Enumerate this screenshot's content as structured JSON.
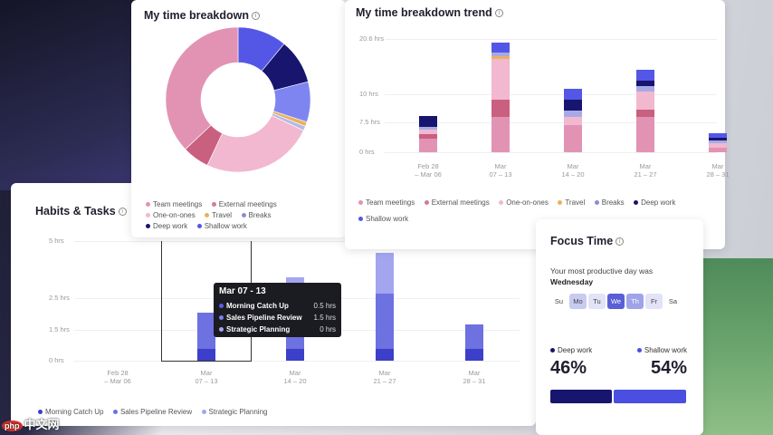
{
  "donut": {
    "title": "My time breakdown",
    "legend": [
      {
        "label": "Team meetings",
        "color": "#e293b4"
      },
      {
        "label": "External meetings",
        "color": "#d47a9c"
      },
      {
        "label": "One-on-ones",
        "color": "#f2b8cf"
      },
      {
        "label": "Travel",
        "color": "#e9b25d"
      },
      {
        "label": "Breaks",
        "color": "#b8b9e6"
      },
      {
        "label": "Deep work",
        "color": "#17156e"
      },
      {
        "label": "Shallow work",
        "color": "#5457e6"
      }
    ],
    "slices": [
      {
        "name": "Shallow work",
        "value": 11,
        "color": "#5457e6"
      },
      {
        "name": "Deep work",
        "value": 10,
        "color": "#17156e"
      },
      {
        "name": "Breaks",
        "value": 9,
        "color": "#7f85f0"
      },
      {
        "name": "Travel",
        "value": 1,
        "color": "#e9b25d"
      },
      {
        "name": "Breaks-2",
        "value": 1,
        "color": "#b8b9e6"
      },
      {
        "name": "One-on-ones",
        "value": 25,
        "color": "#f2b8cf"
      },
      {
        "name": "External meetings",
        "value": 6,
        "color": "#c9607f"
      },
      {
        "name": "Team meetings",
        "value": 37,
        "color": "#e293b4"
      }
    ]
  },
  "trend": {
    "title": "My time breakdown trend",
    "y_ticks": [
      "20.6 hrs",
      "10 hrs",
      "7.5 hrs",
      "0 hrs"
    ],
    "x_labels": [
      {
        "line1": "Feb 28",
        "line2": "– Mar 06"
      },
      {
        "line1": "Mar",
        "line2": "07 – 13"
      },
      {
        "line1": "Mar",
        "line2": "14 – 20"
      },
      {
        "line1": "Mar",
        "line2": "21 – 27"
      },
      {
        "line1": "Mar",
        "line2": "28 – 31"
      }
    ],
    "legend": [
      {
        "label": "Team meetings",
        "color": "#e293b4"
      },
      {
        "label": "External meetings",
        "color": "#d47a9c"
      },
      {
        "label": "One-on-ones",
        "color": "#f2b8cf"
      },
      {
        "label": "Travel",
        "color": "#e9b25d"
      },
      {
        "label": "Breaks",
        "color": "#8b8dd6"
      },
      {
        "label": "Deep work",
        "color": "#17156e"
      },
      {
        "label": "Shallow work",
        "color": "#5457e6"
      }
    ]
  },
  "habits": {
    "title": "Habits & Tasks",
    "y_ticks": [
      "5 hrs",
      "2.5 hrs",
      "1.5 hrs",
      "0 hrs"
    ],
    "x_labels": [
      {
        "line1": "Feb 28",
        "line2": "– Mar 06"
      },
      {
        "line1": "Mar",
        "line2": "07 – 13"
      },
      {
        "line1": "Mar",
        "line2": "14 – 20"
      },
      {
        "line1": "Mar",
        "line2": "21 – 27"
      },
      {
        "line1": "Mar",
        "line2": "28 – 31"
      }
    ],
    "legend": [
      {
        "label": "Morning Catch Up",
        "color": "#3c3fc9"
      },
      {
        "label": "Sales Pipeline Review",
        "color": "#6e71e0"
      },
      {
        "label": "Strategic Planning",
        "color": "#a3a6ef"
      }
    ],
    "tooltip": {
      "title": "Mar 07 - 13",
      "rows": [
        {
          "name": "Morning Catch Up",
          "value": "0.5 hrs",
          "color": "#3c3fc9"
        },
        {
          "name": "Sales Pipeline Review",
          "value": "1.5 hrs",
          "color": "#6e71e0"
        },
        {
          "name": "Strategic Planning",
          "value": "0 hrs",
          "color": "#a3a6ef"
        }
      ]
    }
  },
  "focus": {
    "title": "Focus Time",
    "subtitle": "Your most productive day was",
    "day": "Wednesday",
    "weekdays": [
      "Su",
      "Mo",
      "Tu",
      "We",
      "Th",
      "Fr",
      "Sa"
    ],
    "deep_label": "Deep work",
    "shallow_label": "Shallow work",
    "deep_pct": "46%",
    "shallow_pct": "54%",
    "deep_color": "#17156e",
    "shallow_color": "#4a4fe0"
  },
  "watermark": {
    "badge": "php",
    "text": "中文网"
  },
  "chart_data": [
    {
      "type": "pie",
      "title": "My time breakdown",
      "categories": [
        "Shallow work",
        "Deep work",
        "Breaks",
        "Travel",
        "One-on-ones",
        "External meetings",
        "Team meetings"
      ],
      "values": [
        11,
        10,
        10,
        1,
        25,
        6,
        37
      ]
    },
    {
      "type": "bar",
      "title": "My time breakdown trend",
      "categories": [
        "Feb 28 – Mar 06",
        "Mar 07 – 13",
        "Mar 14 – 20",
        "Mar 21 – 27",
        "Mar 28 – 31"
      ],
      "ylim": [
        0,
        20.6
      ],
      "series": [
        {
          "name": "Team meetings",
          "values": [
            2.5,
            6.5,
            5.0,
            6.5,
            0.8
          ]
        },
        {
          "name": "External meetings",
          "values": [
            0.8,
            3.0,
            0,
            1.2,
            0
          ]
        },
        {
          "name": "One-on-ones",
          "values": [
            0.8,
            7.5,
            1.5,
            3.3,
            0.8
          ]
        },
        {
          "name": "Travel",
          "values": [
            0,
            0.5,
            0,
            0,
            0
          ]
        },
        {
          "name": "Breaks",
          "values": [
            0.5,
            0.7,
            1.0,
            1.0,
            0.5
          ]
        },
        {
          "name": "Deep work",
          "values": [
            2.0,
            0,
            2.0,
            1.0,
            0.5
          ]
        },
        {
          "name": "Shallow work",
          "values": [
            0,
            1.8,
            2.0,
            2.0,
            0.8
          ]
        }
      ]
    },
    {
      "type": "bar",
      "title": "Habits & Tasks",
      "categories": [
        "Feb 28 – Mar 06",
        "Mar 07 – 13",
        "Mar 14 – 20",
        "Mar 21 – 27",
        "Mar 28 – 31"
      ],
      "ylim": [
        0,
        5
      ],
      "series": [
        {
          "name": "Morning Catch Up",
          "values": [
            0,
            0.5,
            0.5,
            0.5,
            0.5
          ]
        },
        {
          "name": "Sales Pipeline Review",
          "values": [
            0,
            1.5,
            2.4,
            2.3,
            1.0
          ]
        },
        {
          "name": "Strategic Planning",
          "values": [
            0,
            0,
            0.6,
            1.7,
            0
          ]
        }
      ]
    }
  ]
}
